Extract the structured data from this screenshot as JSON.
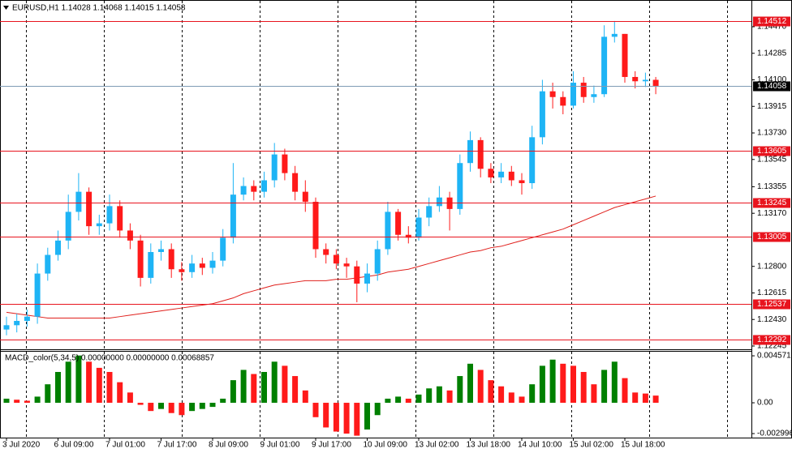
{
  "chart_data": [
    {
      "type": "candlestick",
      "title": "EURUSD,H1  1.14028 1.14068 1.14015 1.14058",
      "categories": [
        "3 Jul 2020",
        null,
        null,
        null,
        null,
        "6 Jul 09:00",
        null,
        null,
        null,
        null,
        "7 Jul 01:00",
        null,
        null,
        null,
        null,
        "7 Jul 17:00",
        null,
        null,
        null,
        null,
        "8 Jul 09:00",
        null,
        null,
        null,
        null,
        "9 Jul 01:00",
        null,
        null,
        null,
        null,
        "9 Jul 17:00",
        null,
        null,
        null,
        null,
        "10 Jul 09:00",
        null,
        null,
        null,
        null,
        "13 Jul 02:00",
        null,
        null,
        null,
        null,
        "13 Jul 18:00",
        null,
        null,
        null,
        null,
        "14 Jul 10:00",
        null,
        null,
        null,
        null,
        "15 Jul 02:00",
        null,
        null,
        null,
        null,
        "15 Jul 18:00",
        null,
        null,
        null
      ],
      "open": [
        1.1236,
        1.1239,
        1.1242,
        1.1245,
        1.1275,
        1.1288,
        1.1298,
        1.1318,
        1.1332,
        1.1308,
        1.131,
        1.1322,
        1.1305,
        1.1298,
        1.1272,
        1.129,
        1.1292,
        1.1278,
        1.1276,
        1.1282,
        1.1279,
        1.1284,
        1.13,
        1.133,
        1.1336,
        1.1332,
        1.134,
        1.1358,
        1.1345,
        1.1332,
        1.1325,
        1.1292,
        1.1288,
        1.1282,
        1.128,
        1.1268,
        1.1275,
        1.1292,
        1.1318,
        1.1302,
        1.13,
        1.1314,
        1.1322,
        1.1328,
        1.132,
        1.1352,
        1.1368,
        1.1348,
        1.1342,
        1.1346,
        1.134,
        1.1338,
        1.137,
        1.1402,
        1.1398,
        1.1392,
        1.1408,
        1.1398,
        1.14,
        1.144,
        1.1442,
        1.1412,
        1.1409,
        1.141
      ],
      "high": [
        1.1245,
        1.1247,
        1.125,
        1.1282,
        1.1293,
        1.1305,
        1.133,
        1.1345,
        1.1335,
        1.1316,
        1.133,
        1.1326,
        1.131,
        1.1302,
        1.1296,
        1.1298,
        1.1296,
        1.1283,
        1.1288,
        1.1286,
        1.129,
        1.1306,
        1.1352,
        1.1342,
        1.134,
        1.1346,
        1.1366,
        1.1362,
        1.135,
        1.134,
        1.1328,
        1.1296,
        1.1292,
        1.1286,
        1.1284,
        1.1282,
        1.1298,
        1.1325,
        1.132,
        1.1308,
        1.132,
        1.1328,
        1.1336,
        1.1332,
        1.1358,
        1.1374,
        1.137,
        1.1352,
        1.1352,
        1.135,
        1.1345,
        1.1378,
        1.141,
        1.1408,
        1.1402,
        1.1416,
        1.1412,
        1.1406,
        1.1448,
        1.1451,
        1.1442,
        1.1416,
        1.1415,
        1.1412
      ],
      "low": [
        1.1232,
        1.1234,
        1.1238,
        1.124,
        1.127,
        1.1284,
        1.1292,
        1.1312,
        1.1302,
        1.1302,
        1.1305,
        1.13,
        1.1292,
        1.1266,
        1.1268,
        1.1284,
        1.1272,
        1.127,
        1.1272,
        1.1274,
        1.1275,
        1.128,
        1.1296,
        1.1326,
        1.1326,
        1.1328,
        1.1335,
        1.134,
        1.1326,
        1.1318,
        1.1286,
        1.1282,
        1.1278,
        1.1272,
        1.1255,
        1.1262,
        1.127,
        1.1288,
        1.1298,
        1.1296,
        1.1298,
        1.1308,
        1.1318,
        1.1305,
        1.1316,
        1.1346,
        1.1342,
        1.1338,
        1.1338,
        1.1336,
        1.133,
        1.1334,
        1.1365,
        1.139,
        1.1386,
        1.139,
        1.1394,
        1.1394,
        1.1398,
        1.1436,
        1.1408,
        1.1404,
        1.1405,
        1.14
      ],
      "close": [
        1.1239,
        1.1242,
        1.1245,
        1.1275,
        1.1288,
        1.1298,
        1.1318,
        1.1332,
        1.1308,
        1.131,
        1.1322,
        1.1305,
        1.1298,
        1.1272,
        1.129,
        1.1292,
        1.1278,
        1.1276,
        1.1282,
        1.1279,
        1.1284,
        1.13,
        1.133,
        1.1336,
        1.1332,
        1.134,
        1.1358,
        1.1345,
        1.1332,
        1.1325,
        1.1292,
        1.1288,
        1.1282,
        1.128,
        1.1268,
        1.1275,
        1.1292,
        1.1318,
        1.1302,
        1.13,
        1.1314,
        1.1322,
        1.1328,
        1.132,
        1.1352,
        1.1368,
        1.1348,
        1.1342,
        1.1346,
        1.134,
        1.1338,
        1.137,
        1.1402,
        1.1398,
        1.1392,
        1.1408,
        1.1398,
        1.14,
        1.144,
        1.1442,
        1.1412,
        1.1409,
        1.141,
        1.14058
      ],
      "up_color": "#1eb4f5",
      "down_color": "#ff1a1a",
      "moving_average": {
        "color": "#e0201c",
        "values": [
          1.1248,
          1.1247,
          1.1246,
          1.1245,
          1.1244,
          1.1244,
          1.1244,
          1.1244,
          1.1244,
          1.1244,
          1.1244,
          1.1245,
          1.1246,
          1.1247,
          1.1248,
          1.1249,
          1.125,
          1.1251,
          1.1252,
          1.1253,
          1.1254,
          1.1256,
          1.1258,
          1.1261,
          1.1263,
          1.1265,
          1.1267,
          1.1268,
          1.1269,
          1.127,
          1.127,
          1.127,
          1.1271,
          1.1271,
          1.1272,
          1.1273,
          1.1274,
          1.1276,
          1.1277,
          1.1278,
          1.128,
          1.1282,
          1.1284,
          1.1286,
          1.1288,
          1.129,
          1.1291,
          1.1293,
          1.1294,
          1.1296,
          1.1298,
          1.13,
          1.1302,
          1.1304,
          1.1306,
          1.1309,
          1.1312,
          1.1315,
          1.1318,
          1.1321,
          1.1323,
          1.1325,
          1.1327,
          1.1329
        ]
      },
      "levels": {
        "color": "#e8141e",
        "values": [
          1.14512,
          1.13605,
          1.13245,
          1.13005,
          1.12537,
          1.12292
        ]
      },
      "current_price": {
        "value": 1.14058,
        "line_color": "#7f9bb5",
        "label_color": "#000000"
      },
      "ylim": [
        1.12228,
        1.14645
      ],
      "yticks": [
        {
          "value": 1.1447,
          "label": "1.14470"
        },
        1.14285,
        {
          "value": 1.141,
          "label": "1.14100"
        },
        1.13915,
        {
          "value": 1.1373,
          "label": "1.13730"
        },
        1.13545,
        1.13355,
        {
          "value": 1.1317,
          "label": "1.13170"
        },
        {
          "value": 1.128,
          "label": "1.12800"
        },
        1.12615,
        {
          "value": 1.1243,
          "label": "1.12430"
        },
        1.12245
      ]
    },
    {
      "type": "bar",
      "title": "MACD_color(5,34,5) 0.00000000 0.00000000 0.00068857",
      "values": [
        0.0004,
        0.0003,
        0.0002,
        0.0006,
        0.0018,
        0.003,
        0.004,
        0.0046,
        0.004,
        0.0034,
        0.003,
        0.002,
        0.001,
        -0.0002,
        -0.0008,
        -0.0006,
        -0.001,
        -0.0012,
        -0.0008,
        -0.0006,
        -0.0004,
        0.0004,
        0.0022,
        0.0032,
        0.0028,
        0.003,
        0.004,
        0.0036,
        0.0026,
        0.0012,
        -0.0014,
        -0.0024,
        -0.0028,
        -0.003,
        -0.0032,
        -0.0026,
        -0.0012,
        0.0004,
        0.0006,
        0.0004,
        0.0008,
        0.0014,
        0.0016,
        0.0012,
        0.0026,
        0.0038,
        0.0032,
        0.0022,
        0.0016,
        0.001,
        0.0006,
        0.0018,
        0.0036,
        0.0042,
        0.0038,
        0.0036,
        0.003,
        0.0018,
        0.0032,
        0.004,
        0.0024,
        0.001,
        0.0009,
        0.0007
      ],
      "up_color": "#008000",
      "down_color": "#ff1a1a",
      "ylim": [
        -0.00323,
        0.00497
      ],
      "yticks": [
        0.0045712,
        {
          "value": 0,
          "label": "0.00"
        },
        -0.0029963
      ]
    }
  ]
}
